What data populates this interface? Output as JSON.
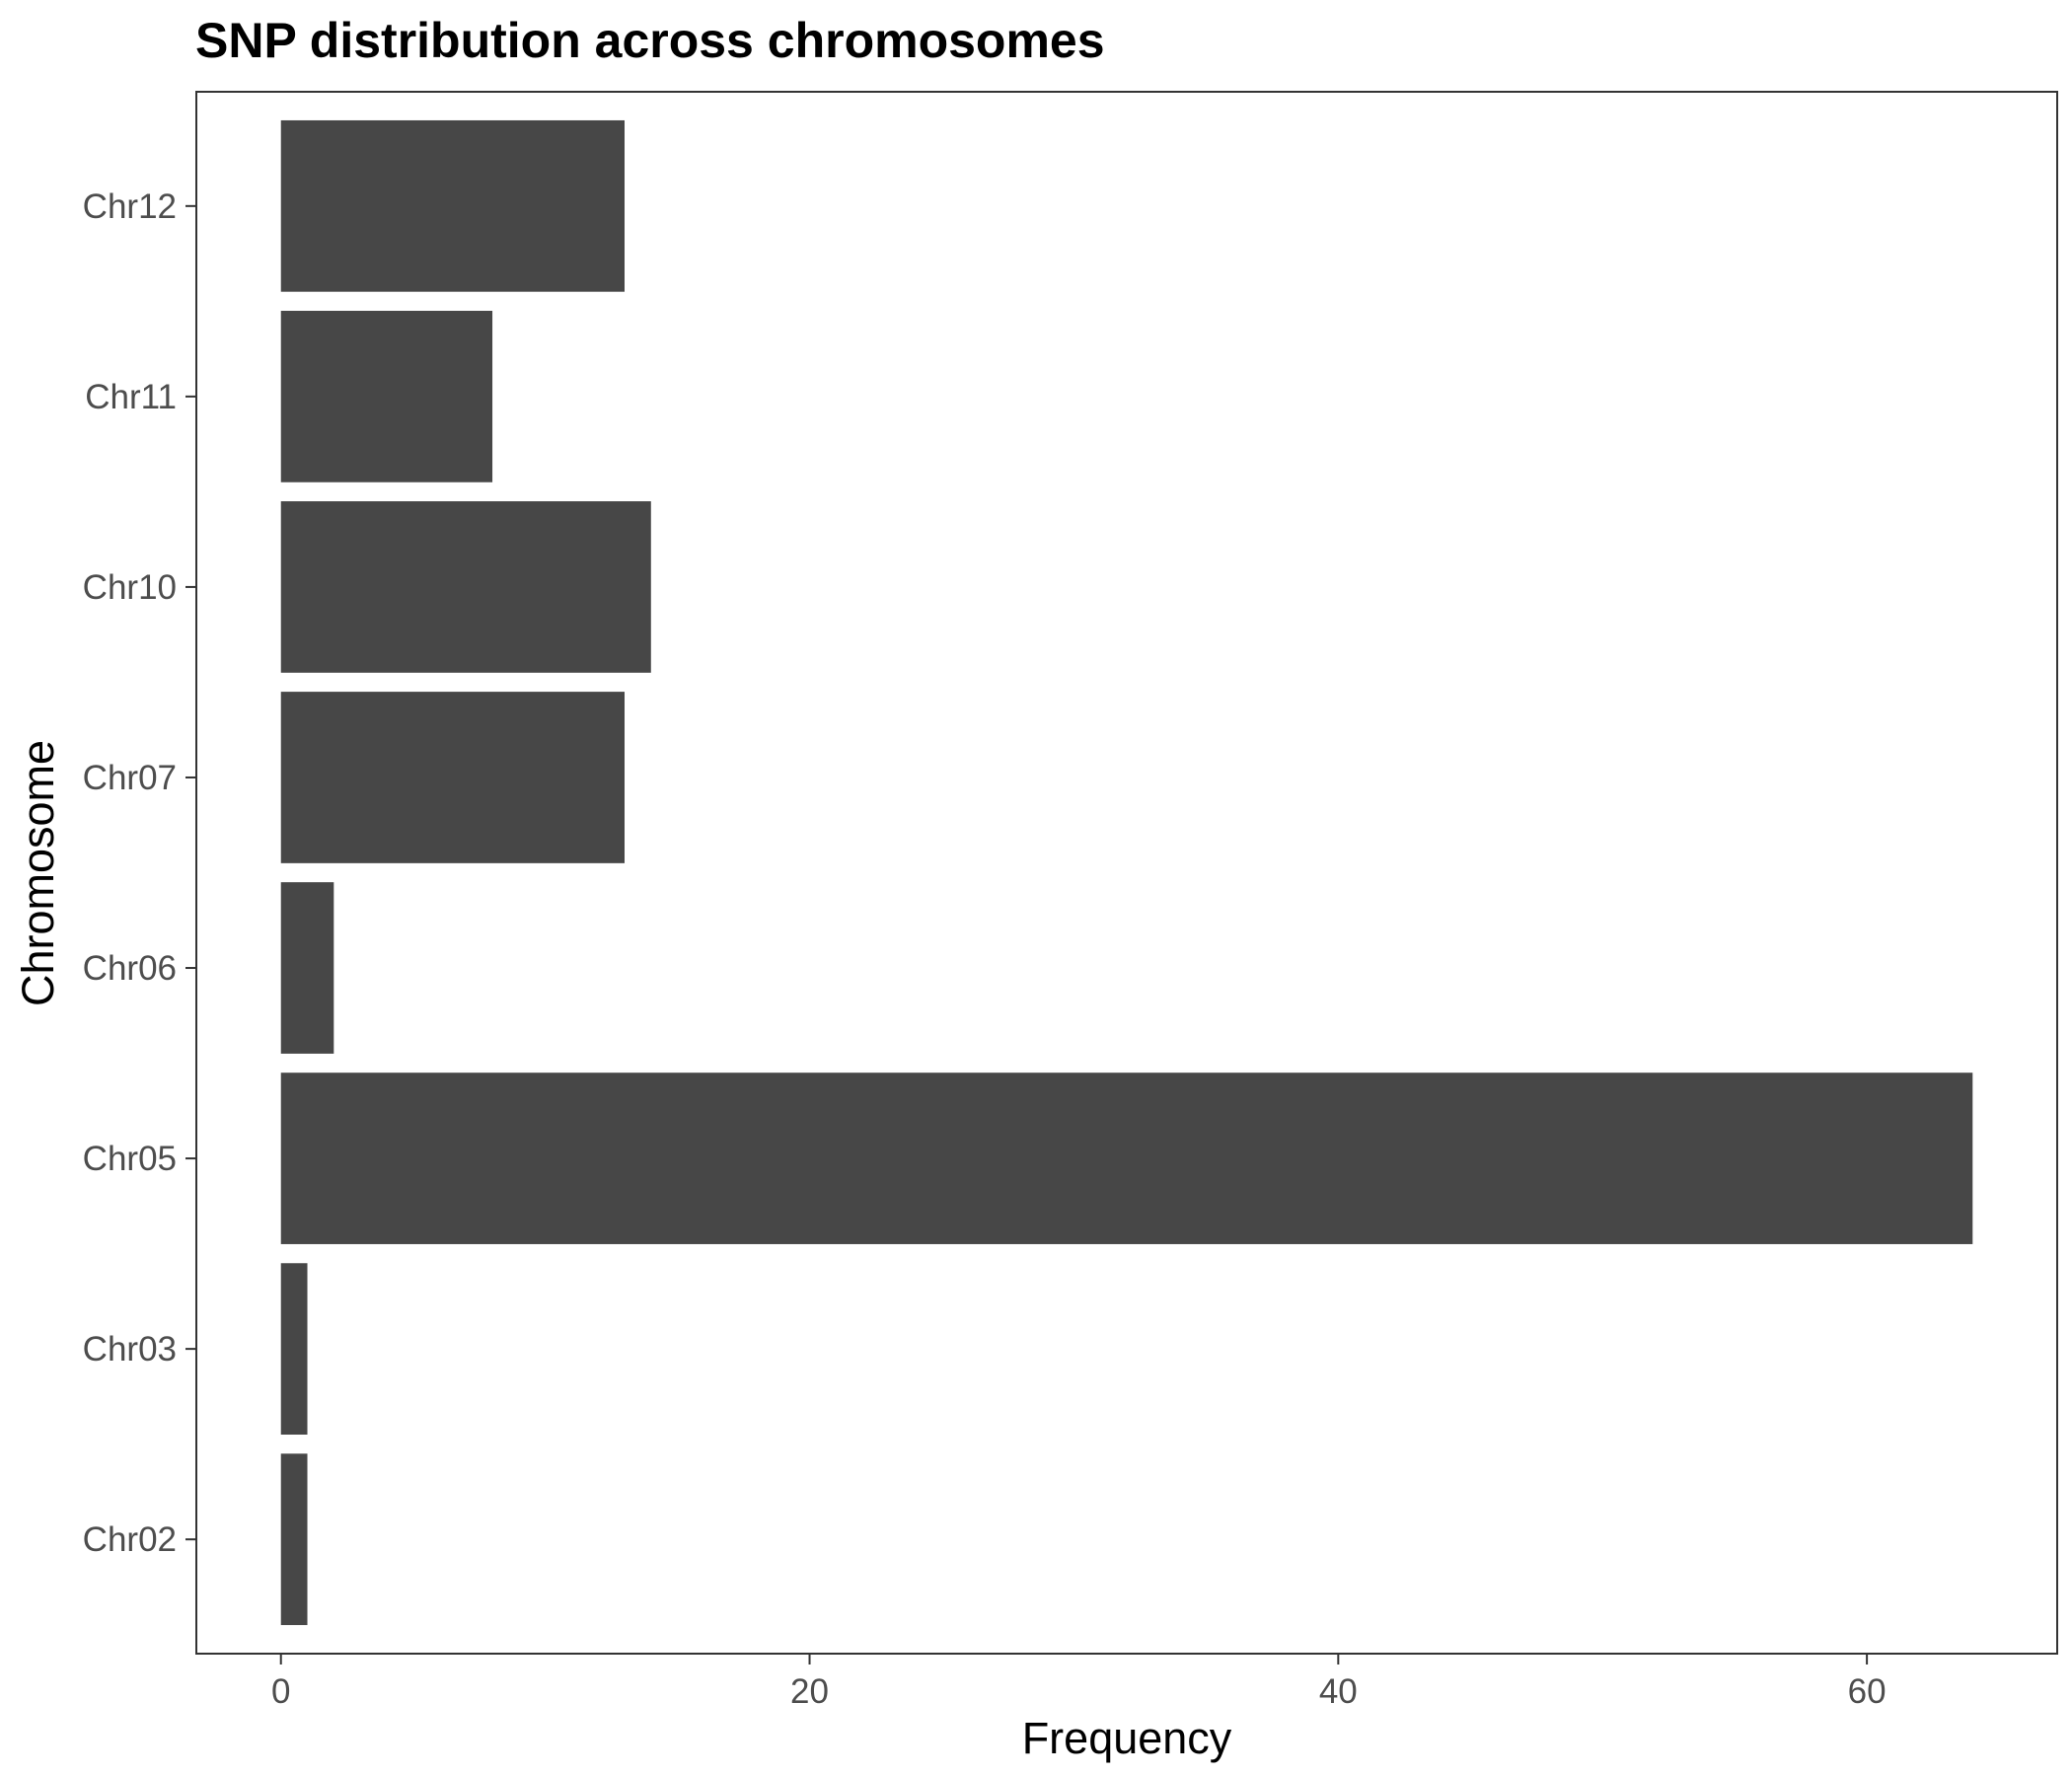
{
  "chart_data": {
    "type": "bar",
    "orientation": "horizontal",
    "title": "SNP distribution across chromosomes",
    "xlabel": "Frequency",
    "ylabel": "Chromosome",
    "categories": [
      "Chr02",
      "Chr03",
      "Chr05",
      "Chr06",
      "Chr07",
      "Chr10",
      "Chr11",
      "Chr12"
    ],
    "values": [
      1,
      1,
      64,
      2,
      13,
      14,
      8,
      13
    ],
    "x_ticks": [
      0,
      20,
      40,
      60
    ],
    "xlim": [
      -3.2,
      67.2
    ],
    "grid": false,
    "legend": "none",
    "colors": {
      "bar": "#474747",
      "panel_border": "#333333",
      "tick_label": "#4d4d4d",
      "text": "#000000"
    }
  }
}
